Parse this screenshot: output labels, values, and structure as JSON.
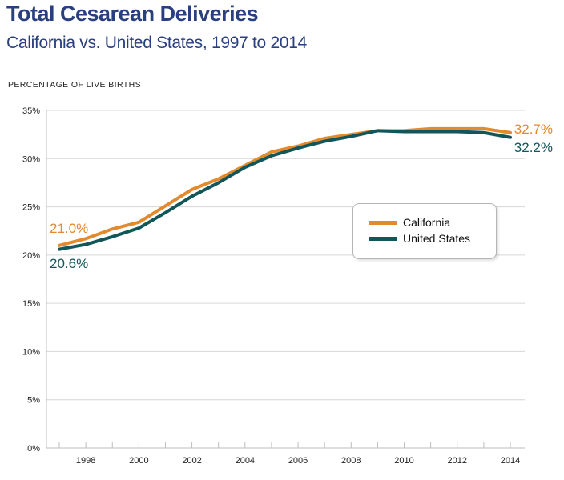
{
  "title": "Total Cesarean Deliveries",
  "subtitle": "California vs. United States, 1997 to 2014",
  "colors": {
    "title": "#2a3f7f",
    "california": "#e38a2e",
    "united_states": "#13565a"
  },
  "chart_data": {
    "type": "line",
    "ylabel": "PERCENTAGE OF LIVE BIRTHS",
    "ylim": [
      0,
      35
    ],
    "y_ticks": [
      "0%",
      "5%",
      "10%",
      "15%",
      "20%",
      "25%",
      "30%",
      "35%"
    ],
    "y_tick_values": [
      0,
      5,
      10,
      15,
      20,
      25,
      30,
      35
    ],
    "x": [
      1997,
      1998,
      1999,
      2000,
      2001,
      2002,
      2003,
      2004,
      2005,
      2006,
      2007,
      2008,
      2009,
      2010,
      2011,
      2012,
      2013,
      2014
    ],
    "x_tick_labels": [
      "1998",
      "2000",
      "2002",
      "2004",
      "2006",
      "2008",
      "2010",
      "2012",
      "2014"
    ],
    "x_tick_values": [
      1998,
      2000,
      2002,
      2004,
      2006,
      2008,
      2010,
      2012,
      2014
    ],
    "grid": "horizontal",
    "legend_position": "center-right",
    "series": [
      {
        "name": "California",
        "color": "#e38a2e",
        "values": [
          21.0,
          21.7,
          22.7,
          23.4,
          25.1,
          26.8,
          27.9,
          29.3,
          30.7,
          31.3,
          32.1,
          32.5,
          32.9,
          32.9,
          33.1,
          33.1,
          33.1,
          32.7
        ],
        "start_label": "21.0%",
        "end_label": "32.7%"
      },
      {
        "name": "United States",
        "color": "#13565a",
        "values": [
          20.6,
          21.1,
          21.9,
          22.8,
          24.4,
          26.1,
          27.5,
          29.1,
          30.3,
          31.1,
          31.8,
          32.3,
          32.9,
          32.8,
          32.8,
          32.8,
          32.7,
          32.2
        ],
        "start_label": "20.6%",
        "end_label": "32.2%"
      }
    ]
  }
}
